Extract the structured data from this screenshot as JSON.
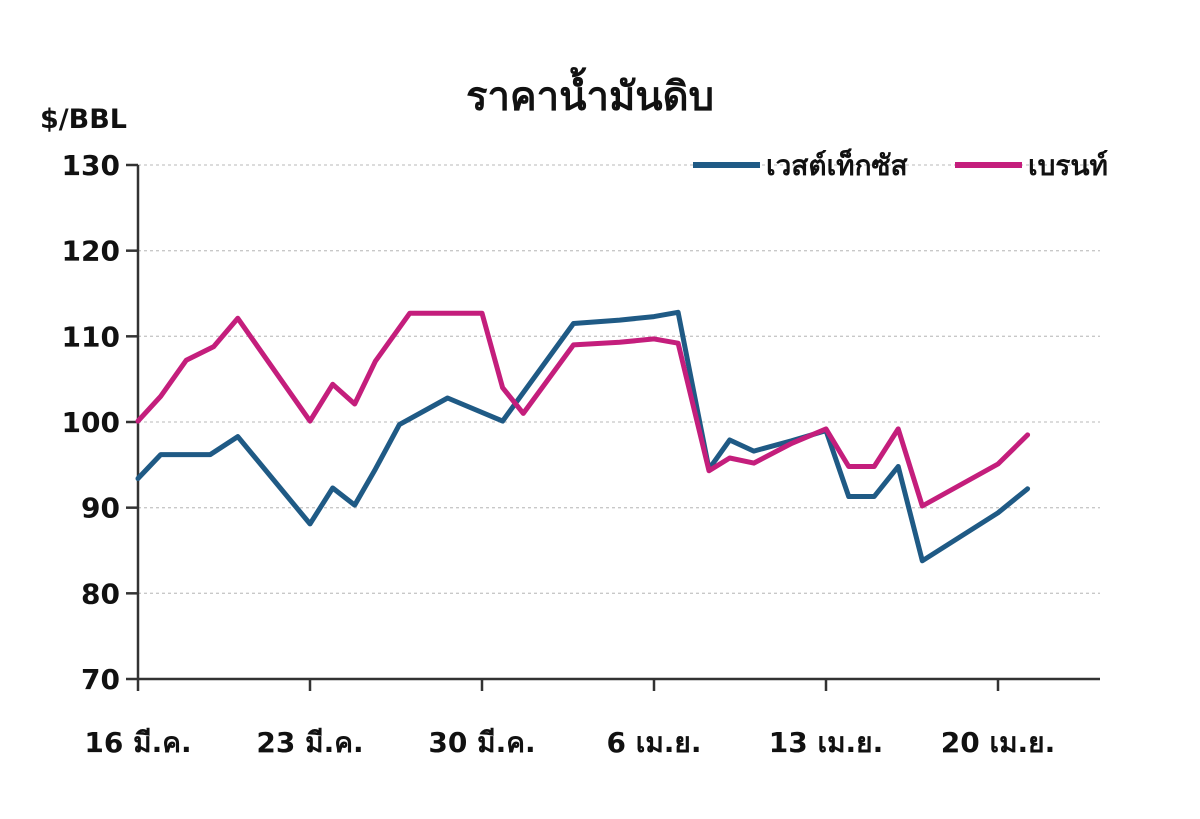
{
  "chart_data": {
    "type": "line",
    "title": "ราคาน้ำมันดิบ",
    "ylabel": "$/BBL",
    "xlabel": "",
    "ylim": [
      70,
      130
    ],
    "yticks": [
      70,
      80,
      90,
      100,
      110,
      120,
      130
    ],
    "grid": true,
    "legend_position": "top-right",
    "x_ticks": [
      {
        "label": "16 มี.ค.",
        "index": 0
      },
      {
        "label": "23 มี.ค.",
        "index": 5
      },
      {
        "label": "30 มี.ค.",
        "index": 10
      },
      {
        "label": "6 เม.ย.",
        "index": 15
      },
      {
        "label": "13 เม.ย.",
        "index": 20
      },
      {
        "label": "20 เม.ย.",
        "index": 25
      }
    ],
    "series": [
      {
        "name": "เวสต์เท็กซัส",
        "color": "#1f5a85",
        "points": [
          [
            0,
            93.4
          ],
          [
            0.66,
            96.2
          ],
          [
            1.6,
            96.2
          ],
          [
            2.1,
            96.2
          ],
          [
            2.9,
            98.3
          ],
          [
            5,
            88.1
          ],
          [
            5.66,
            92.3
          ],
          [
            6.3,
            90.3
          ],
          [
            6.9,
            94.5
          ],
          [
            7.6,
            99.7
          ],
          [
            9,
            102.8
          ],
          [
            10.6,
            100.1
          ],
          [
            12.66,
            111.5
          ],
          [
            14,
            111.9
          ],
          [
            15,
            112.3
          ],
          [
            15.7,
            112.8
          ],
          [
            16.6,
            94.5
          ],
          [
            17.2,
            97.9
          ],
          [
            17.9,
            96.6
          ],
          [
            19,
            97.8
          ],
          [
            20,
            99.0
          ],
          [
            20.66,
            91.3
          ],
          [
            21.4,
            91.3
          ],
          [
            22.1,
            94.8
          ],
          [
            22.8,
            83.8
          ],
          [
            25,
            89.4
          ],
          [
            25.86,
            92.2
          ]
        ]
      },
      {
        "name": "เบรนท์",
        "color": "#c41e7c",
        "points": [
          [
            0,
            100.1
          ],
          [
            0.66,
            103.0
          ],
          [
            1.4,
            107.2
          ],
          [
            2.2,
            108.8
          ],
          [
            2.9,
            112.1
          ],
          [
            5,
            100.1
          ],
          [
            5.66,
            104.4
          ],
          [
            6.3,
            102.1
          ],
          [
            6.9,
            107.1
          ],
          [
            7.9,
            112.7
          ],
          [
            10,
            112.7
          ],
          [
            10.6,
            104.0
          ],
          [
            11.2,
            101.0
          ],
          [
            12.66,
            109.0
          ],
          [
            14,
            109.3
          ],
          [
            15,
            109.7
          ],
          [
            15.7,
            109.2
          ],
          [
            16.6,
            94.3
          ],
          [
            17.2,
            95.8
          ],
          [
            17.9,
            95.2
          ],
          [
            19,
            97.5
          ],
          [
            20,
            99.2
          ],
          [
            20.66,
            94.8
          ],
          [
            21.4,
            94.8
          ],
          [
            22.1,
            99.2
          ],
          [
            22.8,
            90.2
          ],
          [
            25,
            95.1
          ],
          [
            25.86,
            98.5
          ]
        ]
      }
    ]
  }
}
